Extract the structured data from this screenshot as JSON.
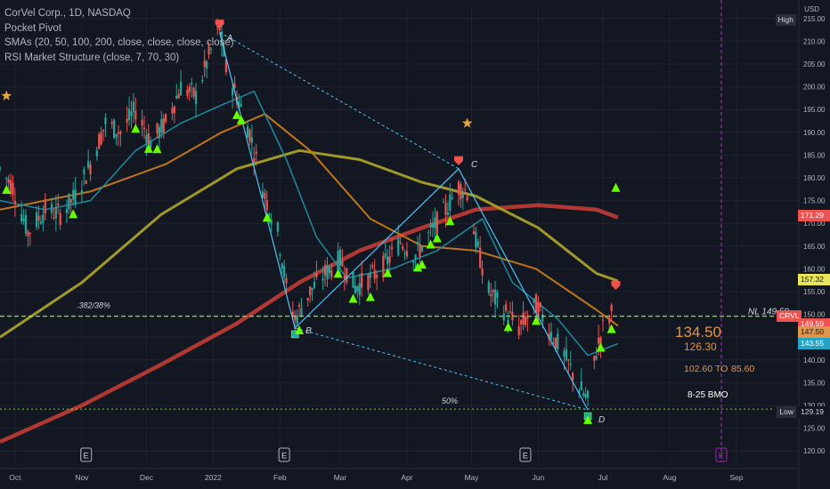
{
  "legend": {
    "title": "CorVel Corp., 1D, NASDAQ",
    "line2": "Pocket Pivot",
    "line3": "SMAs (20, 50, 100, 200, close, close, close, close)",
    "line4": "RSI Market Structure (close, 7, 70, 30)"
  },
  "axis": {
    "currency": "USD",
    "y_ticks": [
      "215.00",
      "210.00",
      "205.00",
      "200.00",
      "195.00",
      "190.00",
      "185.00",
      "180.00",
      "175.00",
      "170.00",
      "165.00",
      "160.00",
      "155.00",
      "150.00",
      "145.00",
      "140.00",
      "135.00",
      "130.00",
      "125.00",
      "120.00"
    ],
    "x_ticks": [
      "Oct",
      "Nov",
      "Dec",
      "2022",
      "Feb",
      "Mar",
      "Apr",
      "May",
      "Jun",
      "Jul",
      "Aug",
      "Sep"
    ]
  },
  "price_badges": {
    "high": "High",
    "red": "171.29",
    "yellow": "157.32",
    "orange": "147.50",
    "crvl": "CRVL",
    "last": "149.59",
    "blue": "143.55",
    "low": "Low",
    "low_value": "129.19"
  },
  "annotations": {
    "fib_382": ".382/38%",
    "fib_50": "50%",
    "nl": "NL 149.59",
    "target_main": "134.50",
    "target_2": "126.30",
    "target_range_a": "102.60",
    "target_to": "TO",
    "target_range_b": "85.60",
    "bmo": "8-25 BMO",
    "pivot_a": "A",
    "pivot_b": "B",
    "pivot_c": "C",
    "pivot_d": "D",
    "earnings": "E"
  },
  "colors": {
    "background": "#131722",
    "sma20": "#1f8fa6",
    "sma50": "#c87a1a",
    "sma100": "#a8a02a",
    "sma200": "#b83a34",
    "up_candle": "#26a69a",
    "down_candle": "#ef5350",
    "pivot_triangle": "#66ff00",
    "level_line": "#8cff3a",
    "pattern_line": "#4fc3f7",
    "earnings_purple": "#9c27b0",
    "star": "#e8a33d"
  },
  "chart_data": {
    "type": "line",
    "symbol": "CRVL",
    "y_axis_unit": "USD",
    "ylim": [
      117.5,
      217.5
    ],
    "x_axis_labels": [
      "Oct",
      "Nov",
      "Dec",
      "2022",
      "Feb",
      "Mar",
      "Apr",
      "May",
      "Jun",
      "Jul",
      "Aug",
      "Sep"
    ],
    "price_path": [
      {
        "date": "2021-09-24",
        "price": 182
      },
      {
        "date": "2021-09-30",
        "price": 178
      },
      {
        "date": "2021-10-07",
        "price": 168
      },
      {
        "date": "2021-10-15",
        "price": 173
      },
      {
        "date": "2021-10-22",
        "price": 172
      },
      {
        "date": "2021-10-29",
        "price": 176
      },
      {
        "date": "2021-11-05",
        "price": 183
      },
      {
        "date": "2021-11-12",
        "price": 192
      },
      {
        "date": "2021-11-19",
        "price": 190
      },
      {
        "date": "2021-11-26",
        "price": 195
      },
      {
        "date": "2021-12-03",
        "price": 188
      },
      {
        "date": "2021-12-10",
        "price": 192
      },
      {
        "date": "2021-12-17",
        "price": 200
      },
      {
        "date": "2021-12-24",
        "price": 198
      },
      {
        "date": "2021-12-31",
        "price": 208
      },
      {
        "date": "2022-01-04",
        "price": 213
      },
      {
        "date": "2022-01-07",
        "price": 204
      },
      {
        "date": "2022-01-12",
        "price": 198
      },
      {
        "date": "2022-01-18",
        "price": 190
      },
      {
        "date": "2022-01-25",
        "price": 176
      },
      {
        "date": "2022-01-31",
        "price": 168
      },
      {
        "date": "2022-02-04",
        "price": 156
      },
      {
        "date": "2022-02-08",
        "price": 149
      },
      {
        "date": "2022-02-15",
        "price": 155
      },
      {
        "date": "2022-02-22",
        "price": 159
      },
      {
        "date": "2022-03-01",
        "price": 162
      },
      {
        "date": "2022-03-08",
        "price": 156
      },
      {
        "date": "2022-03-15",
        "price": 158
      },
      {
        "date": "2022-03-22",
        "price": 161
      },
      {
        "date": "2022-03-29",
        "price": 166
      },
      {
        "date": "2022-04-05",
        "price": 163
      },
      {
        "date": "2022-04-12",
        "price": 168
      },
      {
        "date": "2022-04-19",
        "price": 173
      },
      {
        "date": "2022-04-25",
        "price": 178
      },
      {
        "date": "2022-04-29",
        "price": 177
      },
      {
        "date": "2022-05-03",
        "price": 166
      },
      {
        "date": "2022-05-09",
        "price": 155
      },
      {
        "date": "2022-05-16",
        "price": 151
      },
      {
        "date": "2022-05-23",
        "price": 147
      },
      {
        "date": "2022-05-31",
        "price": 152
      },
      {
        "date": "2022-06-07",
        "price": 146
      },
      {
        "date": "2022-06-14",
        "price": 140
      },
      {
        "date": "2022-06-20",
        "price": 134
      },
      {
        "date": "2022-06-24",
        "price": 131
      },
      {
        "date": "2022-06-28",
        "price": 142
      },
      {
        "date": "2022-07-01",
        "price": 147
      },
      {
        "date": "2022-07-06",
        "price": 151
      }
    ],
    "series": [
      {
        "name": "SMA 20",
        "points": [
          {
            "date": "2021-09-24",
            "value": 175
          },
          {
            "date": "2021-10-15",
            "value": 173
          },
          {
            "date": "2021-11-05",
            "value": 175
          },
          {
            "date": "2021-11-26",
            "value": 186
          },
          {
            "date": "2021-12-17",
            "value": 192
          },
          {
            "date": "2022-01-05",
            "value": 196
          },
          {
            "date": "2022-01-20",
            "value": 199
          },
          {
            "date": "2022-02-04",
            "value": 184
          },
          {
            "date": "2022-02-18",
            "value": 167
          },
          {
            "date": "2022-03-04",
            "value": 158
          },
          {
            "date": "2022-03-25",
            "value": 160
          },
          {
            "date": "2022-04-15",
            "value": 164
          },
          {
            "date": "2022-05-06",
            "value": 171
          },
          {
            "date": "2022-05-20",
            "value": 157
          },
          {
            "date": "2022-06-10",
            "value": 149
          },
          {
            "date": "2022-06-24",
            "value": 141
          },
          {
            "date": "2022-07-08",
            "value": 143.55
          }
        ]
      },
      {
        "name": "SMA 50",
        "points": [
          {
            "date": "2021-09-24",
            "value": 173
          },
          {
            "date": "2021-11-05",
            "value": 177
          },
          {
            "date": "2021-12-10",
            "value": 183
          },
          {
            "date": "2022-01-05",
            "value": 190
          },
          {
            "date": "2022-01-25",
            "value": 194
          },
          {
            "date": "2022-02-15",
            "value": 186
          },
          {
            "date": "2022-03-15",
            "value": 171
          },
          {
            "date": "2022-04-08",
            "value": 165
          },
          {
            "date": "2022-05-03",
            "value": 164
          },
          {
            "date": "2022-05-31",
            "value": 160
          },
          {
            "date": "2022-06-28",
            "value": 151
          },
          {
            "date": "2022-07-08",
            "value": 147.5
          }
        ]
      },
      {
        "name": "SMA 100",
        "points": [
          {
            "date": "2021-09-24",
            "value": 145
          },
          {
            "date": "2021-11-01",
            "value": 157
          },
          {
            "date": "2021-12-08",
            "value": 172
          },
          {
            "date": "2022-01-12",
            "value": 182
          },
          {
            "date": "2022-02-10",
            "value": 186
          },
          {
            "date": "2022-03-10",
            "value": 184
          },
          {
            "date": "2022-04-08",
            "value": 179
          },
          {
            "date": "2022-05-03",
            "value": 176
          },
          {
            "date": "2022-06-01",
            "value": 169
          },
          {
            "date": "2022-06-28",
            "value": 159
          },
          {
            "date": "2022-07-08",
            "value": 157.32
          }
        ]
      },
      {
        "name": "SMA 200",
        "points": [
          {
            "date": "2021-09-24",
            "value": 122
          },
          {
            "date": "2021-11-01",
            "value": 130
          },
          {
            "date": "2021-12-08",
            "value": 139
          },
          {
            "date": "2022-01-12",
            "value": 148
          },
          {
            "date": "2022-02-10",
            "value": 157
          },
          {
            "date": "2022-03-10",
            "value": 164
          },
          {
            "date": "2022-04-08",
            "value": 169
          },
          {
            "date": "2022-05-03",
            "value": 173
          },
          {
            "date": "2022-06-01",
            "value": 174
          },
          {
            "date": "2022-06-28",
            "value": 173
          },
          {
            "date": "2022-07-08",
            "value": 171.29
          }
        ]
      }
    ],
    "abcd_pattern": [
      {
        "label": "A",
        "date": "2022-01-04",
        "price": 212
      },
      {
        "label": "B",
        "date": "2022-02-08",
        "price": 147
      },
      {
        "label": "C",
        "date": "2022-04-25",
        "price": 182
      },
      {
        "label": "D",
        "date": "2022-06-24",
        "price": 129
      }
    ],
    "horizontal_levels": [
      {
        "label": ".382/38%",
        "price": 149.59
      },
      {
        "label": "50%",
        "price": 129.19
      }
    ],
    "pocket_pivot_dates": [
      "2021-09-27",
      "2021-10-28",
      "2021-11-26",
      "2021-12-02",
      "2021-12-06",
      "2022-01-12",
      "2022-01-14",
      "2022-01-26",
      "2022-02-10",
      "2022-02-28",
      "2022-03-07",
      "2022-03-15",
      "2022-03-23",
      "2022-04-06",
      "2022-04-08",
      "2022-04-12",
      "2022-04-15",
      "2022-04-21",
      "2022-05-18",
      "2022-05-31",
      "2022-06-24",
      "2022-06-30",
      "2022-07-05",
      "2022-07-07"
    ],
    "earnings_dates": [
      "2021-11-03",
      "2022-02-03",
      "2022-05-26",
      "2022-08-25"
    ],
    "latest_date": "2022-07-08",
    "date_range": [
      "2021-09-24",
      "2022-09-30"
    ]
  }
}
